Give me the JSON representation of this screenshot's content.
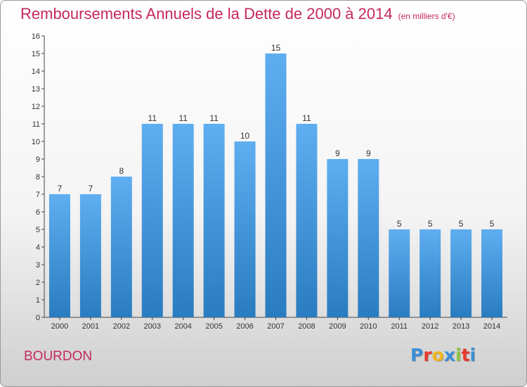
{
  "header": {
    "title": "Remboursements Annuels de la Dette de 2000 à 2014",
    "unit": "(en milliers d'€)"
  },
  "footer": {
    "commune": "BOURDON",
    "logo": "Proxiti",
    "logo_colors": [
      "#3b8fd6",
      "#e8392b",
      "#f2b61f",
      "#3b8fd6",
      "#8dc63f",
      "#e8392b",
      "#3b8fd6"
    ]
  },
  "colors": {
    "title": "#c4285f",
    "bar_top": "#5eaef0",
    "bar_bottom": "#2a7cc0"
  },
  "chart_data": {
    "type": "bar",
    "categories": [
      "2000",
      "2001",
      "2002",
      "2003",
      "2004",
      "2005",
      "2006",
      "2007",
      "2008",
      "2009",
      "2010",
      "2011",
      "2012",
      "2013",
      "2014"
    ],
    "values": [
      7,
      7,
      8,
      11,
      11,
      11,
      10,
      15,
      11,
      9,
      9,
      5,
      5,
      5,
      5
    ],
    "ylim": [
      0,
      16
    ],
    "yticks": [
      0,
      1,
      2,
      3,
      4,
      5,
      6,
      7,
      8,
      9,
      10,
      11,
      12,
      13,
      14,
      15,
      16
    ],
    "grid": false,
    "data_labels": true
  }
}
